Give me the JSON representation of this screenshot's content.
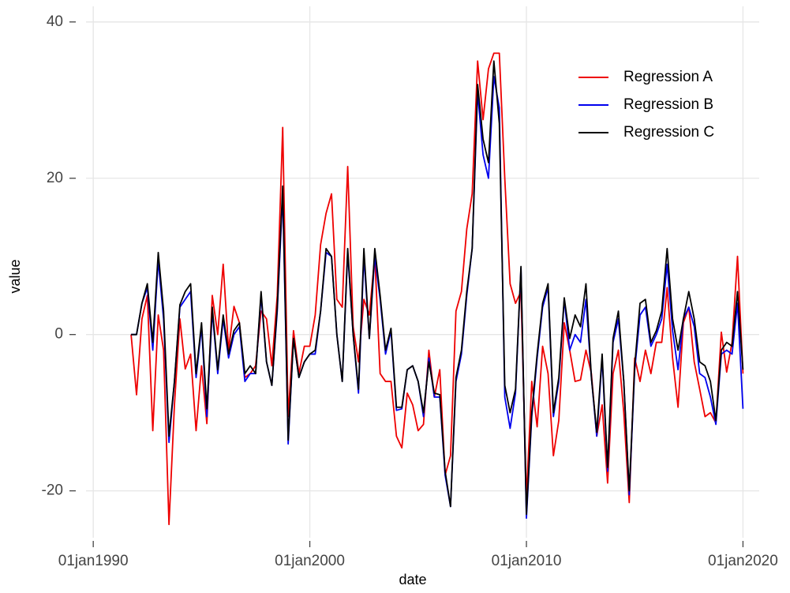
{
  "chart_data": {
    "type": "line",
    "x_label": "date",
    "y_label": "value",
    "x": [
      "1991-10-01",
      "1992-01-01",
      "1992-04-01",
      "1992-07-01",
      "1992-10-01",
      "1993-01-01",
      "1993-04-01",
      "1993-07-01",
      "1993-10-01",
      "1994-01-01",
      "1994-04-01",
      "1994-07-01",
      "1994-10-01",
      "1995-01-01",
      "1995-04-01",
      "1995-07-01",
      "1995-10-01",
      "1996-01-01",
      "1996-04-01",
      "1996-07-01",
      "1996-10-01",
      "1997-01-01",
      "1997-04-01",
      "1997-07-01",
      "1997-10-01",
      "1998-01-01",
      "1998-04-01",
      "1998-07-01",
      "1998-10-01",
      "1999-01-01",
      "1999-04-01",
      "1999-07-01",
      "1999-10-01",
      "2000-01-01",
      "2000-04-01",
      "2000-07-01",
      "2000-10-01",
      "2001-01-01",
      "2001-04-01",
      "2001-07-01",
      "2001-10-01",
      "2002-01-01",
      "2002-04-01",
      "2002-07-01",
      "2002-10-01",
      "2003-01-01",
      "2003-04-01",
      "2003-07-01",
      "2003-10-01",
      "2004-01-01",
      "2004-04-01",
      "2004-07-01",
      "2004-10-01",
      "2005-01-01",
      "2005-04-01",
      "2005-07-01",
      "2005-10-01",
      "2006-01-01",
      "2006-04-01",
      "2006-07-01",
      "2006-10-01",
      "2007-01-01",
      "2007-04-01",
      "2007-07-01",
      "2007-10-01",
      "2008-01-01",
      "2008-04-01",
      "2008-07-01",
      "2008-10-01",
      "2009-01-01",
      "2009-04-01",
      "2009-07-01",
      "2009-10-01",
      "2010-01-01",
      "2010-04-01",
      "2010-07-01",
      "2010-10-01",
      "2011-01-01",
      "2011-04-01",
      "2011-07-01",
      "2011-10-01",
      "2012-01-01",
      "2012-04-01",
      "2012-07-01",
      "2012-10-01",
      "2013-01-01",
      "2013-04-01",
      "2013-07-01",
      "2013-10-01",
      "2014-01-01",
      "2014-04-01",
      "2014-07-01",
      "2014-10-01",
      "2015-01-01",
      "2015-04-01",
      "2015-07-01",
      "2015-10-01",
      "2016-01-01",
      "2016-04-01",
      "2016-07-01",
      "2016-10-01",
      "2017-01-01",
      "2017-04-01",
      "2017-07-01",
      "2017-10-01",
      "2018-01-01",
      "2018-04-01",
      "2018-07-01",
      "2018-10-01",
      "2019-01-01",
      "2019-04-01",
      "2019-07-01",
      "2019-10-01",
      "2020-01-01"
    ],
    "series": [
      {
        "name": "Regression A",
        "color": "#ee0000",
        "values": [
          0,
          -7.7,
          2,
          5,
          -12.3,
          2.5,
          -2,
          -24.3,
          -9,
          2,
          -4.4,
          -2.5,
          -12.3,
          -4,
          -11.4,
          5,
          0,
          9,
          -2,
          3.6,
          1.5,
          -5.5,
          -5,
          -4,
          3,
          2,
          -4,
          5,
          26.5,
          -10.5,
          0.5,
          -5,
          -1.5,
          -1.5,
          2.5,
          11.5,
          15.5,
          18,
          4.5,
          3.5,
          21.5,
          1,
          -3.5,
          4.5,
          2.5,
          10,
          -5,
          -6,
          -6,
          -13,
          -14.5,
          -7.5,
          -9,
          -12.3,
          -11.5,
          -2,
          -8,
          -4.5,
          -18,
          -15.5,
          3,
          5.5,
          13.5,
          18,
          35,
          27.5,
          34,
          36,
          36,
          20,
          6.5,
          4,
          5.5,
          -21,
          -6,
          -11.8,
          -1.5,
          -5,
          -15.5,
          -11,
          1.5,
          -2,
          -6,
          -5.8,
          -2,
          -5,
          -13,
          -9,
          -19,
          -5,
          -2,
          -10,
          -21.5,
          -3,
          -6,
          -2,
          -5,
          -1,
          -1,
          6,
          -3,
          -9.3,
          1.5,
          3.5,
          -3.5,
          -7,
          -10.5,
          -10,
          -11.3,
          0.3,
          -4.8,
          -1,
          10,
          -5
        ]
      },
      {
        "name": "Regression B",
        "color": "#0000ee",
        "values": [
          0,
          0,
          4,
          6,
          -2,
          9.5,
          2,
          -13.8,
          -6,
          3.5,
          4.5,
          5.5,
          -5.5,
          1,
          -10.5,
          3,
          -5,
          2,
          -3,
          0,
          1,
          -6,
          -5,
          -5,
          5,
          -3.5,
          -6.5,
          3,
          18,
          -14,
          -0.5,
          -5.5,
          -3.5,
          -2.5,
          -2.5,
          3,
          10.5,
          10,
          0,
          -6,
          10.5,
          0,
          -7.5,
          10,
          -0.5,
          10,
          4.5,
          -2.5,
          0.5,
          -9.7,
          -9.5,
          -4.5,
          -4,
          -6,
          -10.5,
          -3,
          -8,
          -8,
          -18,
          -22,
          -6,
          -2.5,
          5,
          11,
          31,
          23,
          20,
          33,
          29,
          -8,
          -12,
          -7.5,
          8.5,
          -23.5,
          -10.5,
          -3,
          3.5,
          6,
          -10.5,
          -6,
          4.5,
          -2,
          0,
          -1,
          4.5,
          -5.5,
          -13,
          -3,
          -17.5,
          -1,
          2,
          -6,
          -20.5,
          -4.5,
          2.5,
          3.5,
          -1.5,
          0,
          2,
          9,
          0.5,
          -4.5,
          2,
          3.5,
          1,
          -5,
          -5.5,
          -8,
          -11.5,
          -2.5,
          -2,
          -2.5,
          4,
          -9.5
        ]
      },
      {
        "name": "Regression C",
        "color": "#000000",
        "values": [
          0,
          0,
          4,
          6.5,
          -1,
          10.5,
          3,
          -13,
          -6,
          3.8,
          5.5,
          6.5,
          -5,
          1.5,
          -9.5,
          3.5,
          -4.5,
          2.5,
          -2.5,
          0.5,
          1.5,
          -5,
          -4,
          -5,
          5.5,
          -3.5,
          -6.5,
          3.5,
          19,
          -13.5,
          -0.5,
          -5.5,
          -3.5,
          -2.5,
          -2,
          3,
          11,
          10,
          0,
          -6,
          11,
          0,
          -7,
          11,
          -0.5,
          11,
          5,
          -2,
          0.8,
          -9.3,
          -9.3,
          -4.5,
          -4,
          -6,
          -10,
          -3.5,
          -7.5,
          -7.7,
          -17.5,
          -22,
          -5.5,
          -2,
          5.5,
          11,
          32,
          25,
          22,
          35,
          27,
          -6.5,
          -10,
          -7,
          8.7,
          -23,
          -10,
          -2.5,
          4,
          6.5,
          -10,
          -5.5,
          4.7,
          -0.5,
          2.5,
          1,
          6.5,
          -5.5,
          -12.5,
          -2.5,
          -17,
          -0.5,
          3,
          -6,
          -20,
          -4,
          4,
          4.5,
          -1,
          0.5,
          3,
          11,
          2,
          -2,
          2,
          5.5,
          2,
          -3.5,
          -4,
          -6,
          -11,
          -2,
          -1,
          -1.5,
          5.5,
          -4.5
        ]
      }
    ],
    "xlim": [
      "1989-09-01",
      "2020-10-01"
    ],
    "xticks": [
      {
        "value": "1990-01-01",
        "label": "01jan1990"
      },
      {
        "value": "2000-01-01",
        "label": "01jan2000"
      },
      {
        "value": "2010-01-01",
        "label": "01jan2010"
      },
      {
        "value": "2020-01-01",
        "label": "01jan2020"
      }
    ],
    "ylim": [
      -26,
      42
    ],
    "yticks": [
      -20,
      0,
      20,
      40
    ],
    "grid": true,
    "legend_position": "top-right"
  }
}
